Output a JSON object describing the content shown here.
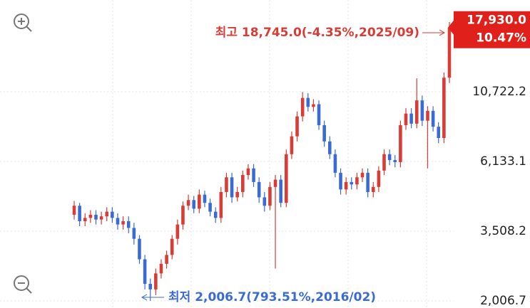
{
  "chart_data": {
    "type": "candlestick",
    "log_scale": true,
    "grid": true,
    "up_color": "#d93b35",
    "down_color": "#3a6bd4",
    "ylim": [
      1895,
      22360
    ],
    "yticks": [
      {
        "value": 2006.7,
        "label": "2,006.7"
      },
      {
        "value": 3508.2,
        "label": "3,508.2"
      },
      {
        "value": 6133.1,
        "label": "6,133.1"
      },
      {
        "value": 10722.2,
        "label": "10,722.2"
      }
    ],
    "current_price": {
      "value": 17930,
      "label": "17,930.0"
    },
    "current_change": "10.47%",
    "high_annotation": {
      "value": 18745,
      "label": "최고 18,745.0(-4.35%,2025/09)"
    },
    "low_annotation": {
      "value": 2006.7,
      "label": "최저 2,006.7(793.51%,2016/02)"
    },
    "open": [
      4000,
      4300,
      3800,
      3900,
      4000,
      3850,
      3950,
      4100,
      3900,
      3700,
      3800,
      3600,
      3300,
      2800,
      2300,
      2200,
      2500,
      2700,
      2900,
      3300,
      3700,
      4300,
      4500,
      4200,
      4700,
      4400,
      4100,
      3900,
      4800,
      5400,
      4600,
      4800,
      5500,
      5800,
      5200,
      4600,
      4300,
      5000,
      5300,
      4400,
      6500,
      7500,
      8800,
      10200,
      9500,
      9700,
      8200,
      7200,
      6500,
      5600,
      4900,
      5200,
      5100,
      5400,
      5600,
      4800,
      5000,
      5700,
      6500,
      6200,
      6100,
      8200,
      9000,
      8300,
      10000,
      8500,
      9200,
      8100,
      7400,
      12000
    ],
    "close": [
      4300,
      3800,
      3900,
      4000,
      3850,
      3950,
      4100,
      3900,
      3700,
      3800,
      3600,
      3300,
      2800,
      2300,
      2200,
      2500,
      2700,
      2900,
      3300,
      3700,
      4300,
      4500,
      4200,
      4700,
      4400,
      4100,
      3900,
      4800,
      5400,
      4600,
      4800,
      5500,
      5800,
      5200,
      4600,
      4300,
      5000,
      5300,
      4400,
      6500,
      7500,
      8800,
      10200,
      9500,
      9700,
      8200,
      7200,
      6500,
      5600,
      4900,
      5200,
      5100,
      5400,
      5600,
      4800,
      5000,
      5700,
      6500,
      6200,
      6100,
      8200,
      9000,
      8300,
      10000,
      8500,
      9200,
      8100,
      7400,
      12000,
      17930
    ],
    "high": [
      4470,
      4400,
      4050,
      4150,
      4150,
      4100,
      4250,
      4250,
      4050,
      3950,
      3950,
      3750,
      3400,
      2900,
      2400,
      2600,
      2800,
      3000,
      3400,
      3850,
      4450,
      4700,
      4650,
      4900,
      4850,
      4550,
      4250,
      5000,
      5600,
      5600,
      5000,
      5700,
      6000,
      6000,
      5400,
      4800,
      5200,
      5500,
      5500,
      6750,
      7800,
      9150,
      10700,
      10600,
      10100,
      10000,
      8500,
      7500,
      6750,
      5800,
      5400,
      5400,
      5600,
      5800,
      5800,
      5200,
      5900,
      6750,
      6750,
      6450,
      8500,
      9400,
      9400,
      11940,
      10400,
      9550,
      9550,
      8400,
      12500,
      18745
    ],
    "low": [
      3850,
      3650,
      3650,
      3750,
      3700,
      3700,
      3800,
      3750,
      3550,
      3550,
      3450,
      3150,
      2700,
      2200,
      2006.7,
      2100,
      2400,
      2600,
      2800,
      3150,
      3550,
      4150,
      4050,
      4050,
      4250,
      3950,
      3750,
      3750,
      4600,
      4400,
      4450,
      4600,
      5300,
      5000,
      4400,
      4100,
      4150,
      2600,
      4250,
      4250,
      6250,
      7200,
      8450,
      9150,
      9150,
      7900,
      6900,
      6250,
      5400,
      4700,
      4700,
      4900,
      4900,
      5200,
      4600,
      4600,
      4800,
      5500,
      5950,
      5850,
      5850,
      7900,
      8000,
      8000,
      8150,
      5800,
      7800,
      7100,
      7100,
      11500
    ]
  }
}
